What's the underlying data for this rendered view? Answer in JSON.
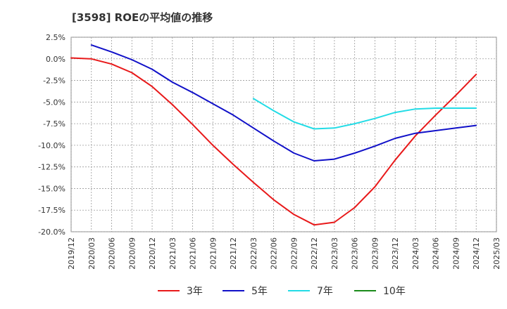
{
  "chart_data": {
    "type": "line",
    "title": "[3598]  ROEの平均値の推移",
    "xlabel": "",
    "ylabel": "",
    "x_ticks": [
      "2019/12",
      "2020/03",
      "2020/06",
      "2020/09",
      "2020/12",
      "2021/03",
      "2021/06",
      "2021/09",
      "2021/12",
      "2022/03",
      "2022/06",
      "2022/09",
      "2022/12",
      "2023/03",
      "2023/06",
      "2023/09",
      "2023/12",
      "2024/03",
      "2024/06",
      "2024/09",
      "2024/12",
      "2025/03"
    ],
    "y_ticks": [
      "2.5%",
      "0.0%",
      "-2.5%",
      "-5.0%",
      "-7.5%",
      "-10.0%",
      "-12.5%",
      "-15.0%",
      "-17.5%",
      "-20.0%"
    ],
    "ylim": [
      -20.0,
      2.5
    ],
    "grid": true,
    "legend_position": "bottom",
    "series": [
      {
        "name": "3年",
        "color": "#e8191a",
        "points": [
          [
            "2019/12",
            0.1
          ],
          [
            "2020/03",
            0.0
          ],
          [
            "2020/06",
            -0.6
          ],
          [
            "2020/09",
            -1.6
          ],
          [
            "2020/12",
            -3.2
          ],
          [
            "2021/03",
            -5.3
          ],
          [
            "2021/06",
            -7.6
          ],
          [
            "2021/09",
            -10.0
          ],
          [
            "2021/12",
            -12.2
          ],
          [
            "2022/03",
            -14.3
          ],
          [
            "2022/06",
            -16.3
          ],
          [
            "2022/09",
            -18.0
          ],
          [
            "2022/12",
            -19.2
          ],
          [
            "2023/03",
            -18.9
          ],
          [
            "2023/06",
            -17.2
          ],
          [
            "2023/09",
            -14.8
          ],
          [
            "2023/12",
            -11.7
          ],
          [
            "2024/03",
            -8.9
          ],
          [
            "2024/06",
            -6.5
          ],
          [
            "2024/09",
            -4.2
          ],
          [
            "2024/12",
            -1.8
          ]
        ]
      },
      {
        "name": "5年",
        "color": "#1010c8",
        "points": [
          [
            "2020/03",
            1.6
          ],
          [
            "2020/06",
            0.8
          ],
          [
            "2020/09",
            -0.1
          ],
          [
            "2020/12",
            -1.2
          ],
          [
            "2021/03",
            -2.7
          ],
          [
            "2021/06",
            -3.9
          ],
          [
            "2021/09",
            -5.2
          ],
          [
            "2021/12",
            -6.5
          ],
          [
            "2022/03",
            -8.0
          ],
          [
            "2022/06",
            -9.5
          ],
          [
            "2022/09",
            -10.9
          ],
          [
            "2022/12",
            -11.8
          ],
          [
            "2023/03",
            -11.6
          ],
          [
            "2023/06",
            -10.9
          ],
          [
            "2023/09",
            -10.1
          ],
          [
            "2023/12",
            -9.2
          ],
          [
            "2024/03",
            -8.6
          ],
          [
            "2024/06",
            -8.3
          ],
          [
            "2024/09",
            -8.0
          ],
          [
            "2024/12",
            -7.7
          ]
        ]
      },
      {
        "name": "7年",
        "color": "#22dce6",
        "points": [
          [
            "2022/03",
            -4.6
          ],
          [
            "2022/06",
            -6.0
          ],
          [
            "2022/09",
            -7.3
          ],
          [
            "2022/12",
            -8.1
          ],
          [
            "2023/03",
            -8.0
          ],
          [
            "2023/06",
            -7.5
          ],
          [
            "2023/09",
            -6.9
          ],
          [
            "2023/12",
            -6.2
          ],
          [
            "2024/03",
            -5.8
          ],
          [
            "2024/06",
            -5.7
          ],
          [
            "2024/09",
            -5.7
          ],
          [
            "2024/12",
            -5.7
          ]
        ]
      },
      {
        "name": "10年",
        "color": "#1a8a1a",
        "points": []
      }
    ]
  }
}
